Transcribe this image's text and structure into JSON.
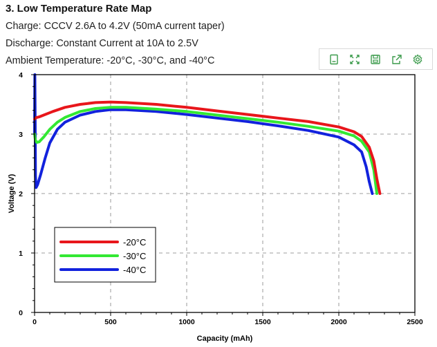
{
  "header": {
    "title": "3. Low Temperature Rate Map",
    "charge": "Charge: CCCV 2.6A to 4.2V (50mA current taper)",
    "discharge": "Discharge: Constant Current at 10A to 2.5V",
    "ambient": "Ambient Temperature: -20°C, -30°C, and -40°C"
  },
  "toolbar": {
    "icons": [
      "data-view-icon",
      "zoom-icon",
      "save-image-icon",
      "export-icon",
      "settings-icon"
    ],
    "color": "#3a9a4a"
  },
  "chart_data": {
    "type": "line",
    "title": "",
    "xlabel": "Capacity (mAh)",
    "ylabel": "Voltage (V)",
    "xlim": [
      0,
      2500
    ],
    "ylim": [
      0,
      4
    ],
    "xticks": [
      "0",
      "500",
      "1000",
      "1500",
      "2000",
      "2500"
    ],
    "yticks": [
      "0",
      "1",
      "2",
      "3",
      "4"
    ],
    "grid": true,
    "legend_position": "bottom-left",
    "series": [
      {
        "name": "-20°C",
        "color": "#e8161b",
        "x": [
          0,
          5,
          15,
          30,
          60,
          120,
          200,
          300,
          400,
          500,
          600,
          800,
          1000,
          1200,
          1400,
          1600,
          1800,
          2000,
          2100,
          2150,
          2200,
          2230,
          2250,
          2270
        ],
        "y": [
          3.25,
          3.27,
          3.28,
          3.29,
          3.32,
          3.38,
          3.45,
          3.5,
          3.53,
          3.54,
          3.53,
          3.5,
          3.45,
          3.39,
          3.33,
          3.27,
          3.21,
          3.12,
          3.04,
          2.96,
          2.78,
          2.55,
          2.25,
          2.0
        ]
      },
      {
        "name": "-30°C",
        "color": "#33e833",
        "x": [
          0,
          5,
          15,
          30,
          60,
          100,
          150,
          200,
          300,
          400,
          500,
          600,
          800,
          1000,
          1200,
          1400,
          1600,
          1800,
          2000,
          2100,
          2150,
          2200,
          2230,
          2250
        ],
        "y": [
          3.0,
          2.9,
          2.86,
          2.87,
          2.95,
          3.08,
          3.2,
          3.28,
          3.38,
          3.43,
          3.45,
          3.45,
          3.42,
          3.38,
          3.32,
          3.26,
          3.2,
          3.13,
          3.05,
          2.97,
          2.88,
          2.7,
          2.4,
          2.0
        ]
      },
      {
        "name": "-40°C",
        "color": "#1222dd",
        "x": [
          0,
          2,
          4,
          6,
          10,
          20,
          40,
          70,
          100,
          150,
          200,
          300,
          400,
          500,
          600,
          800,
          1000,
          1200,
          1400,
          1600,
          1800,
          2000,
          2100,
          2150,
          2180,
          2200,
          2220
        ],
        "y": [
          3.0,
          4.0,
          3.2,
          2.3,
          2.1,
          2.15,
          2.32,
          2.6,
          2.85,
          3.08,
          3.2,
          3.32,
          3.38,
          3.41,
          3.41,
          3.38,
          3.33,
          3.27,
          3.21,
          3.14,
          3.06,
          2.95,
          2.82,
          2.7,
          2.45,
          2.2,
          2.0
        ]
      }
    ]
  }
}
